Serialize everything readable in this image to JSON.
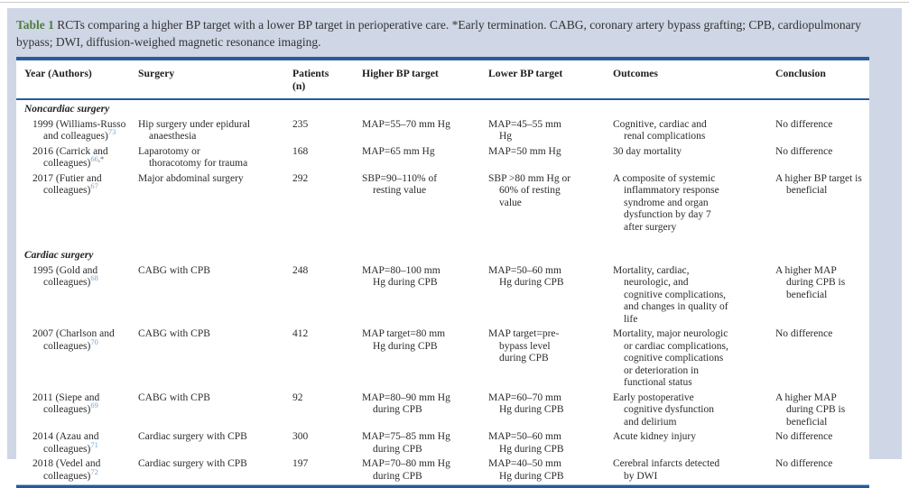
{
  "caption": {
    "label": "Table 1",
    "text": "RCTs comparing a higher BP target with a lower BP target in perioperative care. *Early termination. CABG, coronary artery bypass grafting; CPB, cardiopulmonary bypass; DWI, diffusion-weighed magnetic resonance imaging."
  },
  "colors": {
    "panel_background": "#cfd6e5",
    "table_background": "#ffffff",
    "rule_blue": "#2a5c9b",
    "rule_light_blue": "#9fb9da",
    "caption_label_green": "#4d7f3f",
    "reference_link_blue": "#74a7d4",
    "body_text": "#2b2b2b"
  },
  "table": {
    "columns": [
      "Year (Authors)",
      "Surgery",
      "Patients (n)",
      "Higher BP target",
      "Lower BP target",
      "Outcomes",
      "Conclusion"
    ],
    "sections": [
      {
        "title": "Noncardiac surgery",
        "rows": [
          {
            "year_authors": "1999 (Williams-Russo and colleagues)",
            "reference": "73",
            "reference_suffix": "",
            "surgery": "Hip surgery under epidural anaesthesia",
            "patients": "235",
            "higher_bp": "MAP=55–70 mm Hg",
            "lower_bp": "MAP=45–55 mm Hg",
            "outcomes": "Cognitive, cardiac and renal complications",
            "conclusion": "No difference"
          },
          {
            "year_authors": "2016 (Carrick and colleagues)",
            "reference": "66",
            "reference_suffix": ",*",
            "surgery": "Laparotomy or thoracotomy for trauma",
            "patients": "168",
            "higher_bp": "MAP=65 mm Hg",
            "lower_bp": "MAP=50 mm Hg",
            "outcomes": "30 day mortality",
            "conclusion": "No difference"
          },
          {
            "year_authors": "2017 (Futier and colleagues)",
            "reference": "67",
            "reference_suffix": "",
            "surgery": "Major abdominal surgery",
            "patients": "292",
            "higher_bp": "SBP=90–110% of resting value",
            "lower_bp": "SBP >80 mm Hg or 60% of resting value",
            "outcomes": "A composite of systemic inflammatory response syndrome and organ dysfunction by day 7 after surgery",
            "conclusion": "A higher BP target is beneficial"
          }
        ]
      },
      {
        "title": "Cardiac surgery",
        "rows": [
          {
            "year_authors": "1995 (Gold and colleagues)",
            "reference": "68",
            "reference_suffix": "",
            "surgery": "CABG with CPB",
            "patients": "248",
            "higher_bp": "MAP=80–100 mm Hg during CPB",
            "lower_bp": "MAP=50–60 mm Hg during CPB",
            "outcomes": "Mortality, cardiac, neurologic, and cognitive complications, and changes in quality of life",
            "conclusion": "A higher MAP during CPB is beneficial"
          },
          {
            "year_authors": "2007 (Charlson and colleagues)",
            "reference": "70",
            "reference_suffix": "",
            "surgery": "CABG with CPB",
            "patients": "412",
            "higher_bp": "MAP target=80 mm Hg during CPB",
            "lower_bp": "MAP target=pre-bypass level during CPB",
            "outcomes": "Mortality, major neurologic or cardiac complications, cognitive complications or deterioration in functional status",
            "conclusion": "No difference"
          },
          {
            "year_authors": "2011 (Siepe and colleagues)",
            "reference": "69",
            "reference_suffix": "",
            "surgery": "CABG with CPB",
            "patients": "92",
            "higher_bp": "MAP=80–90 mm Hg during CPB",
            "lower_bp": "MAP=60–70 mm Hg during CPB",
            "outcomes": "Early postoperative cognitive dysfunction and delirium",
            "conclusion": "A higher MAP during CPB is beneficial"
          },
          {
            "year_authors": "2014 (Azau and colleagues)",
            "reference": "71",
            "reference_suffix": "",
            "surgery": "Cardiac surgery with CPB",
            "patients": "300",
            "higher_bp": "MAP=75–85 mm Hg during CPB",
            "lower_bp": "MAP=50–60 mm Hg during CPB",
            "outcomes": "Acute kidney injury",
            "conclusion": "No difference"
          },
          {
            "year_authors": "2018 (Vedel and colleagues)",
            "reference": "72",
            "reference_suffix": "",
            "surgery": "Cardiac surgery with CPB",
            "patients": "197",
            "higher_bp": "MAP=70–80 mm Hg during CPB",
            "lower_bp": "MAP=40–50 mm Hg during CPB",
            "outcomes": "Cerebral infarcts detected by DWI",
            "conclusion": "No difference"
          }
        ]
      }
    ]
  }
}
